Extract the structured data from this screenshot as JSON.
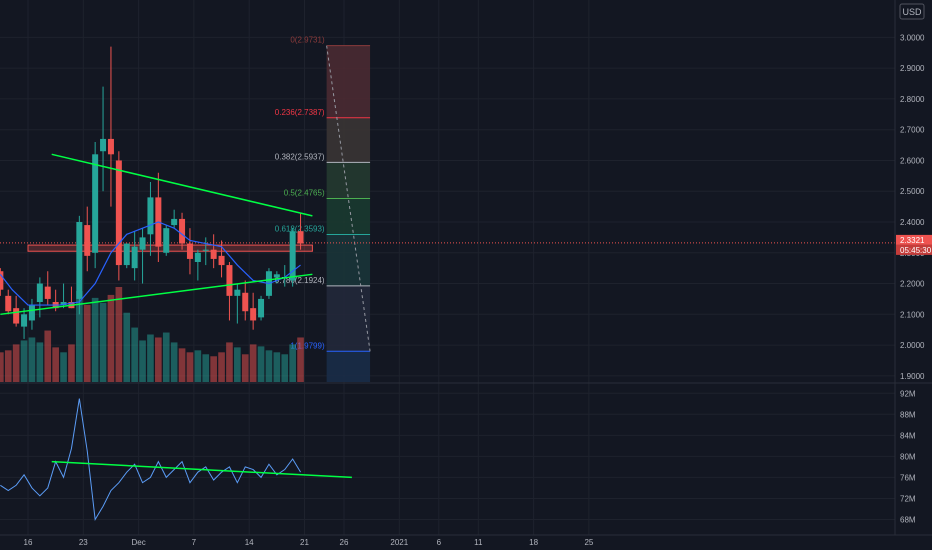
{
  "header": {
    "currency": "USD"
  },
  "chart_data": {
    "type": "candlestick",
    "price_axis": {
      "ticks": [
        "3.0000",
        "2.9000",
        "2.8000",
        "2.7000",
        "2.6000",
        "2.5000",
        "2.4000",
        "2.3000",
        "2.2000",
        "2.1000",
        "2.0000",
        "1.9000"
      ],
      "range": [
        1.88,
        3.05
      ],
      "last_price": "2.3321",
      "countdown": "05:45:30"
    },
    "time_axis": {
      "ticks": [
        {
          "label": "16",
          "day": 16
        },
        {
          "label": "23",
          "day": 23
        },
        {
          "label": "Dec",
          "day": 30
        },
        {
          "label": "7",
          "day": 37
        },
        {
          "label": "14",
          "day": 44
        },
        {
          "label": "21",
          "day": 51
        },
        {
          "label": "26",
          "day": 56
        },
        {
          "label": "2021",
          "day": 63
        },
        {
          "label": "6",
          "day": 68
        },
        {
          "label": "11",
          "day": 73
        },
        {
          "label": "18",
          "day": 80
        },
        {
          "label": "25",
          "day": 87
        }
      ]
    },
    "candles": [
      {
        "day": 12.5,
        "o": 2.24,
        "h": 2.25,
        "l": 2.16,
        "c": 2.18
      },
      {
        "day": 13.5,
        "o": 2.16,
        "h": 2.18,
        "l": 2.1,
        "c": 2.11
      },
      {
        "day": 14.5,
        "o": 2.12,
        "h": 2.16,
        "l": 2.06,
        "c": 2.07
      },
      {
        "day": 15.5,
        "o": 2.06,
        "h": 2.12,
        "l": 2.02,
        "c": 2.1
      },
      {
        "day": 16.5,
        "o": 2.08,
        "h": 2.15,
        "l": 2.05,
        "c": 2.13
      },
      {
        "day": 17.5,
        "o": 2.14,
        "h": 2.22,
        "l": 2.09,
        "c": 2.2
      },
      {
        "day": 18.5,
        "o": 2.19,
        "h": 2.24,
        "l": 2.13,
        "c": 2.15
      },
      {
        "day": 19.5,
        "o": 2.14,
        "h": 2.18,
        "l": 2.11,
        "c": 2.12
      },
      {
        "day": 20.5,
        "o": 2.13,
        "h": 2.2,
        "l": 2.12,
        "c": 2.14
      },
      {
        "day": 21.5,
        "o": 2.14,
        "h": 2.19,
        "l": 2.12,
        "c": 2.12
      },
      {
        "day": 22.5,
        "o": 2.15,
        "h": 2.42,
        "l": 2.1,
        "c": 2.4
      },
      {
        "day": 23.5,
        "o": 2.39,
        "h": 2.45,
        "l": 2.24,
        "c": 2.29
      },
      {
        "day": 24.5,
        "o": 2.3,
        "h": 2.66,
        "l": 2.25,
        "c": 2.62
      },
      {
        "day": 25.5,
        "o": 2.63,
        "h": 2.84,
        "l": 2.5,
        "c": 2.67
      },
      {
        "day": 26.5,
        "o": 2.67,
        "h": 2.97,
        "l": 2.45,
        "c": 2.62
      },
      {
        "day": 27.5,
        "o": 2.6,
        "h": 2.63,
        "l": 2.21,
        "c": 2.26
      },
      {
        "day": 28.5,
        "o": 2.26,
        "h": 2.33,
        "l": 2.25,
        "c": 2.33
      },
      {
        "day": 29.5,
        "o": 2.25,
        "h": 2.37,
        "l": 2.21,
        "c": 2.32
      },
      {
        "day": 30.5,
        "o": 2.31,
        "h": 2.38,
        "l": 2.2,
        "c": 2.35
      },
      {
        "day": 31.5,
        "o": 2.36,
        "h": 2.53,
        "l": 2.29,
        "c": 2.48
      },
      {
        "day": 32.5,
        "o": 2.48,
        "h": 2.56,
        "l": 2.27,
        "c": 2.32
      },
      {
        "day": 33.5,
        "o": 2.3,
        "h": 2.39,
        "l": 2.29,
        "c": 2.38
      },
      {
        "day": 34.5,
        "o": 2.39,
        "h": 2.44,
        "l": 2.38,
        "c": 2.41
      },
      {
        "day": 35.5,
        "o": 2.41,
        "h": 2.43,
        "l": 2.31,
        "c": 2.33
      },
      {
        "day": 36.5,
        "o": 2.33,
        "h": 2.38,
        "l": 2.23,
        "c": 2.28
      },
      {
        "day": 37.5,
        "o": 2.27,
        "h": 2.31,
        "l": 2.21,
        "c": 2.3
      },
      {
        "day": 38.5,
        "o": 2.31,
        "h": 2.35,
        "l": 2.26,
        "c": 2.31
      },
      {
        "day": 39.5,
        "o": 2.31,
        "h": 2.36,
        "l": 2.25,
        "c": 2.28
      },
      {
        "day": 40.5,
        "o": 2.29,
        "h": 2.34,
        "l": 2.22,
        "c": 2.26
      },
      {
        "day": 41.5,
        "o": 2.26,
        "h": 2.27,
        "l": 2.08,
        "c": 2.16
      },
      {
        "day": 42.5,
        "o": 2.16,
        "h": 2.2,
        "l": 2.07,
        "c": 2.18
      },
      {
        "day": 43.5,
        "o": 2.17,
        "h": 2.21,
        "l": 2.08,
        "c": 2.11
      },
      {
        "day": 44.5,
        "o": 2.12,
        "h": 2.17,
        "l": 2.05,
        "c": 2.08
      },
      {
        "day": 45.5,
        "o": 2.09,
        "h": 2.16,
        "l": 2.08,
        "c": 2.15
      },
      {
        "day": 46.5,
        "o": 2.16,
        "h": 2.25,
        "l": 2.15,
        "c": 2.24
      },
      {
        "day": 47.5,
        "o": 2.22,
        "h": 2.24,
        "l": 2.2,
        "c": 2.23
      },
      {
        "day": 48.5,
        "o": 2.22,
        "h": 2.26,
        "l": 2.19,
        "c": 2.22
      },
      {
        "day": 49.5,
        "o": 2.21,
        "h": 2.38,
        "l": 2.19,
        "c": 2.37
      },
      {
        "day": 50.5,
        "o": 2.37,
        "h": 2.43,
        "l": 2.31,
        "c": 2.33
      }
    ],
    "ma_line": [
      {
        "day": 12.5,
        "v": 2.23
      },
      {
        "day": 14,
        "v": 2.18
      },
      {
        "day": 16,
        "v": 2.13
      },
      {
        "day": 18,
        "v": 2.13
      },
      {
        "day": 20,
        "v": 2.13
      },
      {
        "day": 22.5,
        "v": 2.14
      },
      {
        "day": 24.5,
        "v": 2.2
      },
      {
        "day": 26.5,
        "v": 2.3
      },
      {
        "day": 28.5,
        "v": 2.36
      },
      {
        "day": 30.5,
        "v": 2.38
      },
      {
        "day": 32.5,
        "v": 2.4
      },
      {
        "day": 34.5,
        "v": 2.38
      },
      {
        "day": 36.5,
        "v": 2.34
      },
      {
        "day": 38.5,
        "v": 2.33
      },
      {
        "day": 40.5,
        "v": 2.32
      },
      {
        "day": 42.5,
        "v": 2.26
      },
      {
        "day": 44.5,
        "v": 2.21
      },
      {
        "day": 46.5,
        "v": 2.2
      },
      {
        "day": 48.5,
        "v": 2.22
      },
      {
        "day": 50.5,
        "v": 2.26
      }
    ],
    "trendlines": [
      {
        "name": "upper-resistance",
        "from": {
          "day": 19,
          "v": 2.62
        },
        "to": {
          "day": 52,
          "v": 2.42
        }
      },
      {
        "name": "lower-support",
        "from": {
          "day": 12.5,
          "v": 2.1
        },
        "to": {
          "day": 52,
          "v": 2.23
        }
      }
    ],
    "horizontal_zone": {
      "from_day": 16,
      "to_day": 52,
      "top": 2.325,
      "bottom": 2.305
    },
    "current_price_line": 2.3321,
    "fibonacci": {
      "from_day": 53.8,
      "to_day": 59.3,
      "levels": [
        {
          "ratio": "0",
          "label": "0(2.9731)",
          "value": 2.9731,
          "color": "#8c3b3b",
          "fill": "#4a2a32"
        },
        {
          "ratio": "0.236",
          "label": "0.236(2.7387)",
          "value": 2.7387,
          "color": "#f23645",
          "fill": "#3a3434"
        },
        {
          "ratio": "0.382",
          "label": "0.382(2.5937)",
          "value": 2.5937,
          "color": "#b2b5be",
          "fill": "#253a30"
        },
        {
          "ratio": "0.5",
          "label": "0.5(2.4765)",
          "value": 2.4765,
          "color": "#4caf50",
          "fill": "#1a3a30"
        },
        {
          "ratio": "0.618",
          "label": "0.618(2.3593)",
          "value": 2.3593,
          "color": "#26a69a",
          "fill": "#1a3438"
        },
        {
          "ratio": "0.786",
          "label": "0.786(2.1924)",
          "value": 2.1924,
          "color": "#b2b5be",
          "fill": "#22283a"
        },
        {
          "ratio": "1",
          "label": "1(1.9799)",
          "value": 1.9799,
          "color": "#2962ff",
          "fill": "#1a2c48"
        }
      ]
    },
    "volume": {
      "values": [
        30,
        32,
        38,
        42,
        45,
        40,
        52,
        35,
        30,
        38,
        92,
        78,
        85,
        80,
        88,
        96,
        70,
        55,
        42,
        48,
        45,
        50,
        40,
        34,
        30,
        32,
        28,
        26,
        30,
        40,
        35,
        28,
        38,
        36,
        32,
        30,
        28,
        38,
        45
      ]
    },
    "volume_axis": {
      "ticks": [
        "92M",
        "88M",
        "84M",
        "80M",
        "76M",
        "72M",
        "68M"
      ],
      "range": [
        66,
        93
      ]
    },
    "volume_series": [
      {
        "day": 12.5,
        "v": 74.5
      },
      {
        "day": 13.5,
        "v": 73.5
      },
      {
        "day": 14.5,
        "v": 74.5
      },
      {
        "day": 15.5,
        "v": 76.5
      },
      {
        "day": 16.5,
        "v": 74
      },
      {
        "day": 17.5,
        "v": 72.5
      },
      {
        "day": 18.5,
        "v": 74
      },
      {
        "day": 19.5,
        "v": 79
      },
      {
        "day": 20.5,
        "v": 76
      },
      {
        "day": 21.5,
        "v": 81.5
      },
      {
        "day": 22.5,
        "v": 91
      },
      {
        "day": 23.5,
        "v": 81
      },
      {
        "day": 24.5,
        "v": 68
      },
      {
        "day": 25.5,
        "v": 70.5
      },
      {
        "day": 26.5,
        "v": 73.5
      },
      {
        "day": 27.5,
        "v": 75
      },
      {
        "day": 28.5,
        "v": 77
      },
      {
        "day": 29.5,
        "v": 78.5
      },
      {
        "day": 30.5,
        "v": 75
      },
      {
        "day": 31.5,
        "v": 76
      },
      {
        "day": 32.5,
        "v": 79
      },
      {
        "day": 33.5,
        "v": 76
      },
      {
        "day": 34.5,
        "v": 77.5
      },
      {
        "day": 35.5,
        "v": 79
      },
      {
        "day": 36.5,
        "v": 75
      },
      {
        "day": 37.5,
        "v": 77
      },
      {
        "day": 38.5,
        "v": 78
      },
      {
        "day": 39.5,
        "v": 75.5
      },
      {
        "day": 40.5,
        "v": 77
      },
      {
        "day": 41.5,
        "v": 78
      },
      {
        "day": 42.5,
        "v": 75
      },
      {
        "day": 43.5,
        "v": 78
      },
      {
        "day": 44.5,
        "v": 77.5
      },
      {
        "day": 45.5,
        "v": 76
      },
      {
        "day": 46.5,
        "v": 78.5
      },
      {
        "day": 47.5,
        "v": 76.5
      },
      {
        "day": 48.5,
        "v": 77.5
      },
      {
        "day": 49.5,
        "v": 79.5
      },
      {
        "day": 50.5,
        "v": 77
      }
    ],
    "volume_trendline": {
      "from": {
        "day": 19,
        "v": 79
      },
      "to": {
        "day": 57,
        "v": 76
      }
    }
  },
  "colors": {
    "background": "#131722",
    "grid": "#1e222d",
    "up": "#26a69a",
    "down": "#ef5350",
    "up_volume": "#26a69a80",
    "down_volume": "#ef535080",
    "trend": "#00ff44",
    "ma": "#2962ff",
    "axis_text": "#b2b5be",
    "current_price_bg": "#ef5350"
  }
}
